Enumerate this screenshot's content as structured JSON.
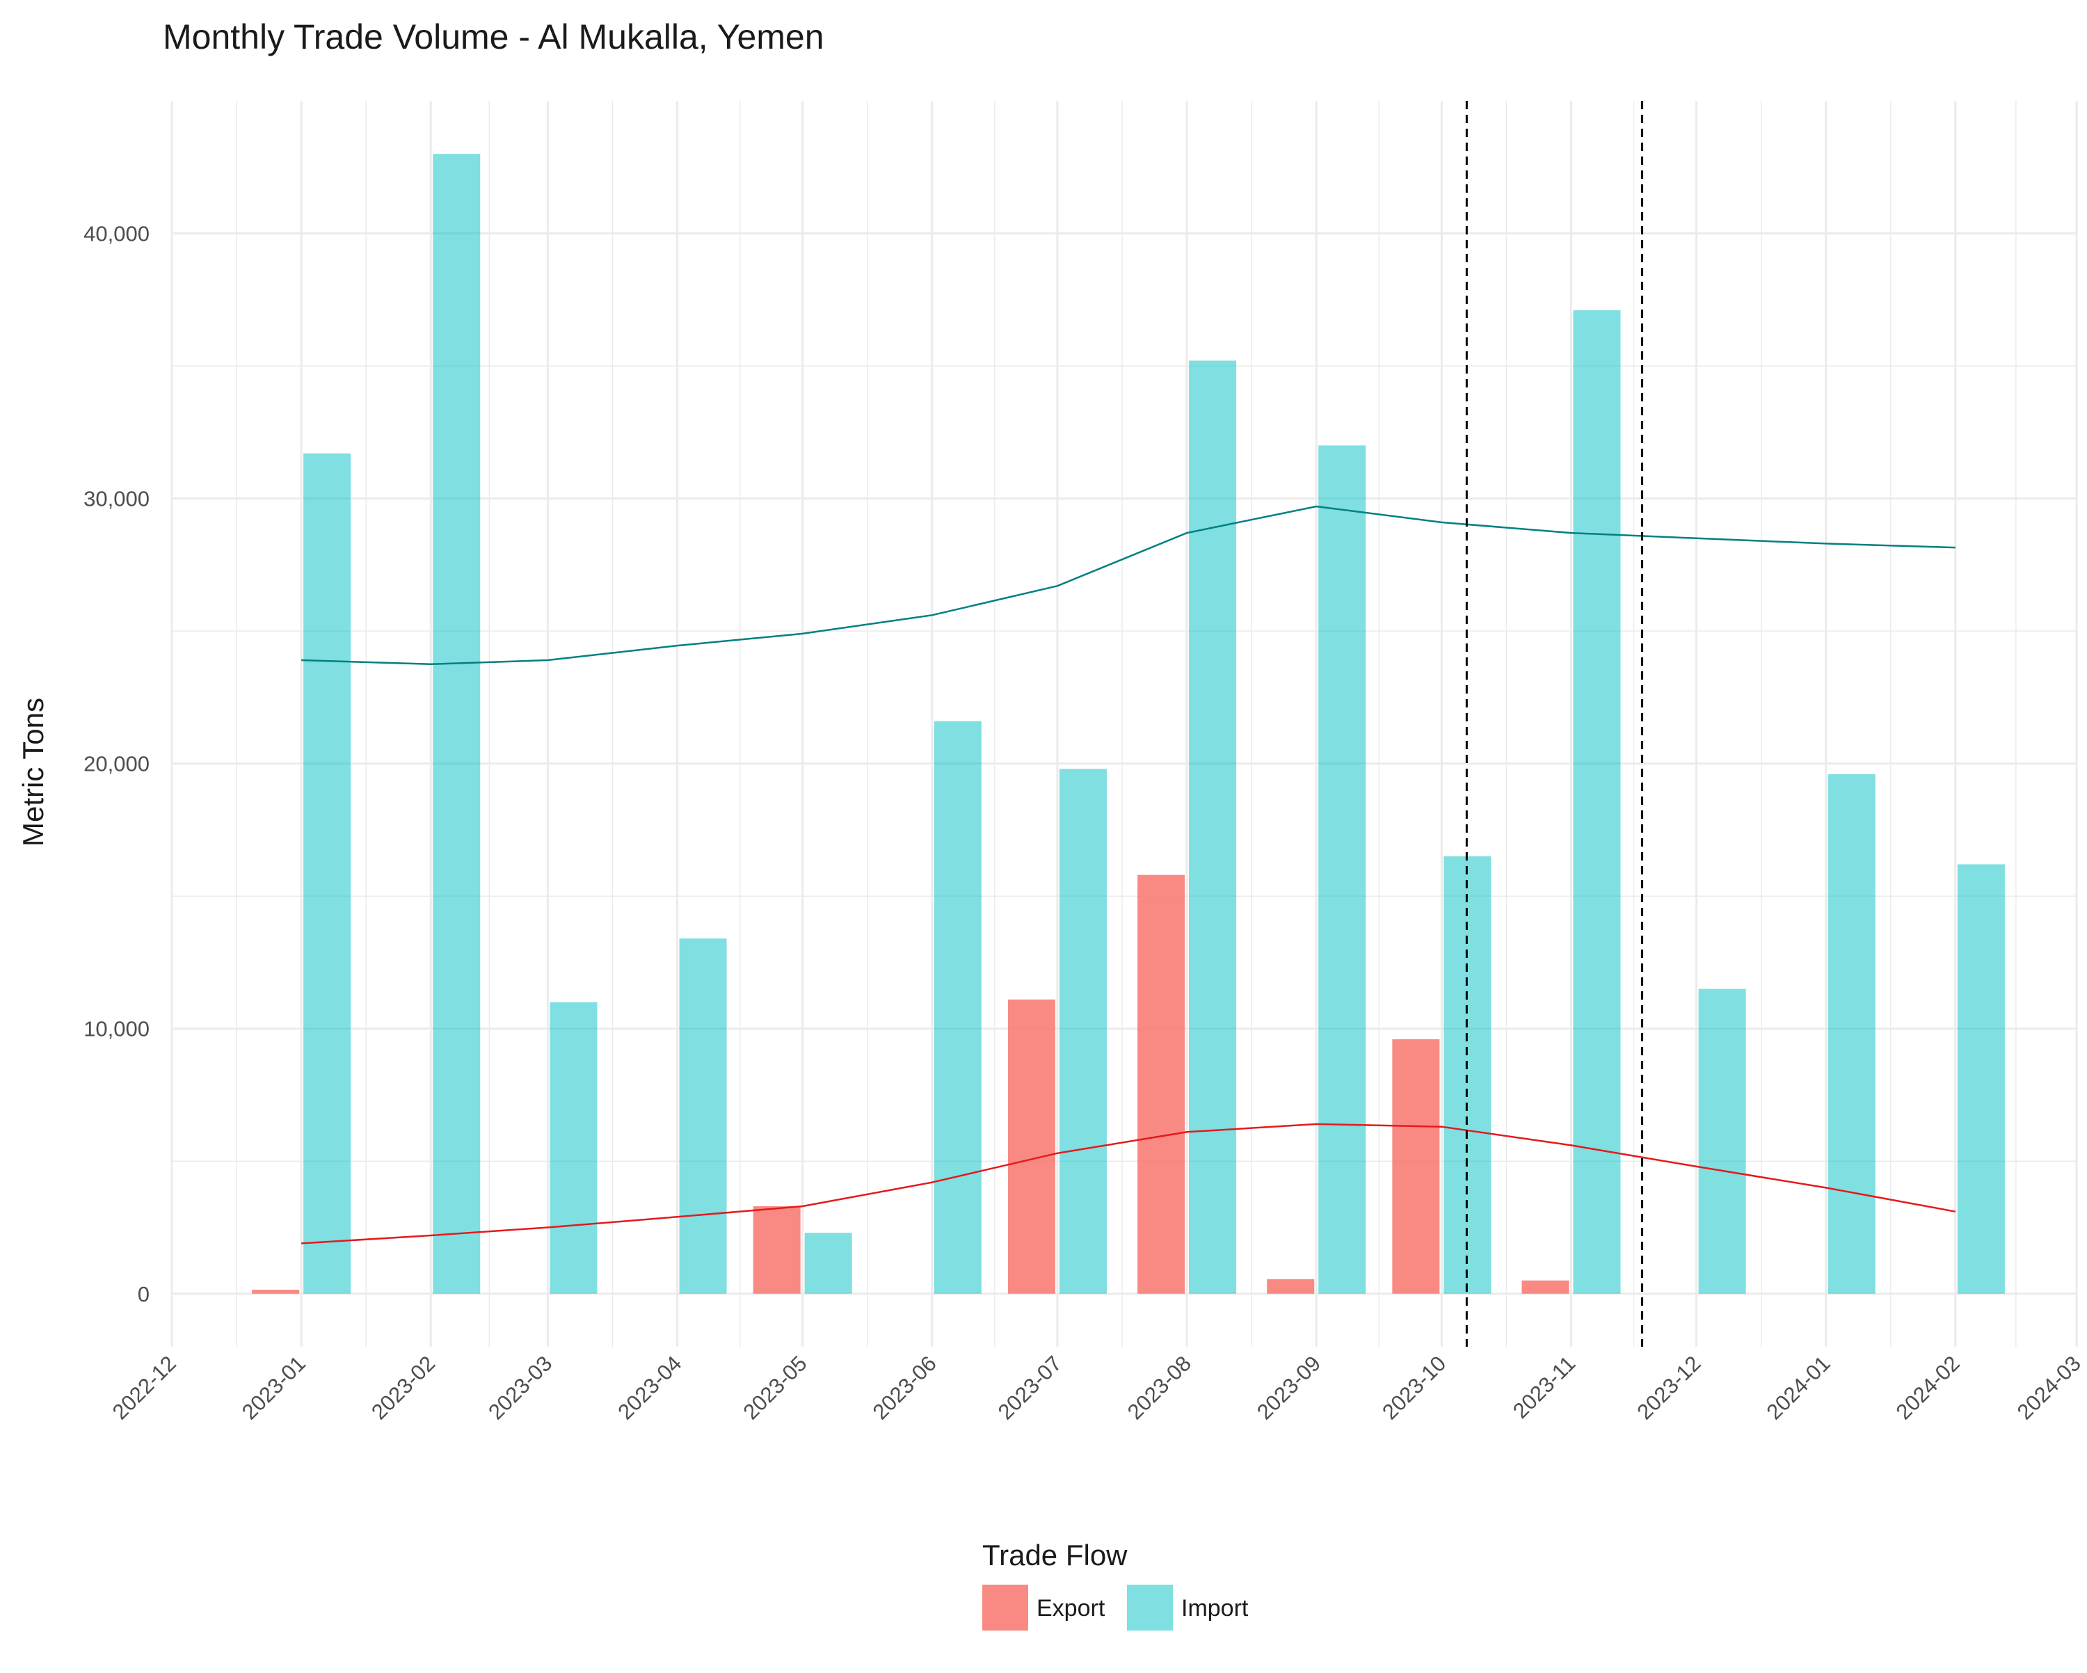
{
  "chart_data": {
    "type": "bar",
    "title": "Monthly Trade Volume - Al Mukalla, Yemen",
    "xlabel": "",
    "ylabel": "Metric Tons",
    "x_ticks": [
      "2022-12",
      "2023-01",
      "2023-02",
      "2023-03",
      "2023-04",
      "2023-05",
      "2023-06",
      "2023-07",
      "2023-08",
      "2023-09",
      "2023-10",
      "2023-11",
      "2023-12",
      "2024-01",
      "2024-02",
      "2024-03"
    ],
    "y_ticks": [
      "0",
      "10,000",
      "20,000",
      "30,000",
      "40,000"
    ],
    "xlim": [
      "2022-12-01",
      "2024-03-01"
    ],
    "ylim": [
      -2000,
      45000
    ],
    "grid": true,
    "legend": {
      "title": "Trade Flow",
      "position": "bottom",
      "entries": [
        "Export",
        "Import"
      ]
    },
    "colors": {
      "Export": "#F8766D",
      "Import": "#00BFC4",
      "Export_trend": "#E41A1C",
      "Import_trend": "#008080",
      "reference_lines": "#000000",
      "grid": "#EBEBEB"
    },
    "series": [
      {
        "name": "Export",
        "points": [
          {
            "date": "2023-01-01",
            "value": 150
          },
          {
            "date": "2023-05-01",
            "value": 3300
          },
          {
            "date": "2023-07-01",
            "value": 11100
          },
          {
            "date": "2023-08-01",
            "value": 15800
          },
          {
            "date": "2023-09-01",
            "value": 550
          },
          {
            "date": "2023-10-01",
            "value": 9600
          },
          {
            "date": "2023-11-01",
            "value": 500
          }
        ]
      },
      {
        "name": "Import",
        "points": [
          {
            "date": "2023-01-01",
            "value": 31700
          },
          {
            "date": "2023-02-01",
            "value": 43000
          },
          {
            "date": "2023-03-01",
            "value": 11000
          },
          {
            "date": "2023-04-01",
            "value": 13400
          },
          {
            "date": "2023-05-01",
            "value": 2300
          },
          {
            "date": "2023-06-01",
            "value": 21600
          },
          {
            "date": "2023-07-01",
            "value": 19800
          },
          {
            "date": "2023-08-01",
            "value": 35200
          },
          {
            "date": "2023-09-01",
            "value": 32000
          },
          {
            "date": "2023-10-01",
            "value": 16500
          },
          {
            "date": "2023-11-01",
            "value": 37100
          },
          {
            "date": "2023-12-01",
            "value": 11500
          },
          {
            "date": "2024-01-01",
            "value": 19600
          },
          {
            "date": "2024-02-01",
            "value": 16200
          }
        ]
      }
    ],
    "trend_lines": [
      {
        "series": "Export",
        "points": [
          {
            "date": "2023-01-01",
            "value": 1900
          },
          {
            "date": "2023-02-01",
            "value": 2200
          },
          {
            "date": "2023-03-01",
            "value": 2500
          },
          {
            "date": "2023-04-01",
            "value": 2900
          },
          {
            "date": "2023-05-01",
            "value": 3300
          },
          {
            "date": "2023-06-01",
            "value": 4200
          },
          {
            "date": "2023-07-01",
            "value": 5300
          },
          {
            "date": "2023-08-01",
            "value": 6100
          },
          {
            "date": "2023-09-01",
            "value": 6400
          },
          {
            "date": "2023-10-01",
            "value": 6300
          },
          {
            "date": "2023-11-01",
            "value": 5600
          },
          {
            "date": "2023-12-01",
            "value": 4800
          },
          {
            "date": "2024-01-01",
            "value": 4000
          },
          {
            "date": "2024-02-01",
            "value": 3100
          }
        ]
      },
      {
        "series": "Import",
        "points": [
          {
            "date": "2023-01-01",
            "value": 23900
          },
          {
            "date": "2023-02-01",
            "value": 23750
          },
          {
            "date": "2023-03-01",
            "value": 23900
          },
          {
            "date": "2023-04-01",
            "value": 24450
          },
          {
            "date": "2023-05-01",
            "value": 24900
          },
          {
            "date": "2023-06-01",
            "value": 25600
          },
          {
            "date": "2023-07-01",
            "value": 26700
          },
          {
            "date": "2023-08-01",
            "value": 28700
          },
          {
            "date": "2023-09-01",
            "value": 29700
          },
          {
            "date": "2023-10-01",
            "value": 29100
          },
          {
            "date": "2023-11-01",
            "value": 28700
          },
          {
            "date": "2023-12-01",
            "value": 28500
          },
          {
            "date": "2024-01-01",
            "value": 28300
          },
          {
            "date": "2024-02-01",
            "value": 28150
          }
        ]
      }
    ],
    "reference_lines": [
      {
        "orientation": "vertical",
        "date": "2023-10-07",
        "style": "dashed"
      },
      {
        "orientation": "vertical",
        "date": "2023-11-18",
        "style": "dashed"
      }
    ]
  }
}
